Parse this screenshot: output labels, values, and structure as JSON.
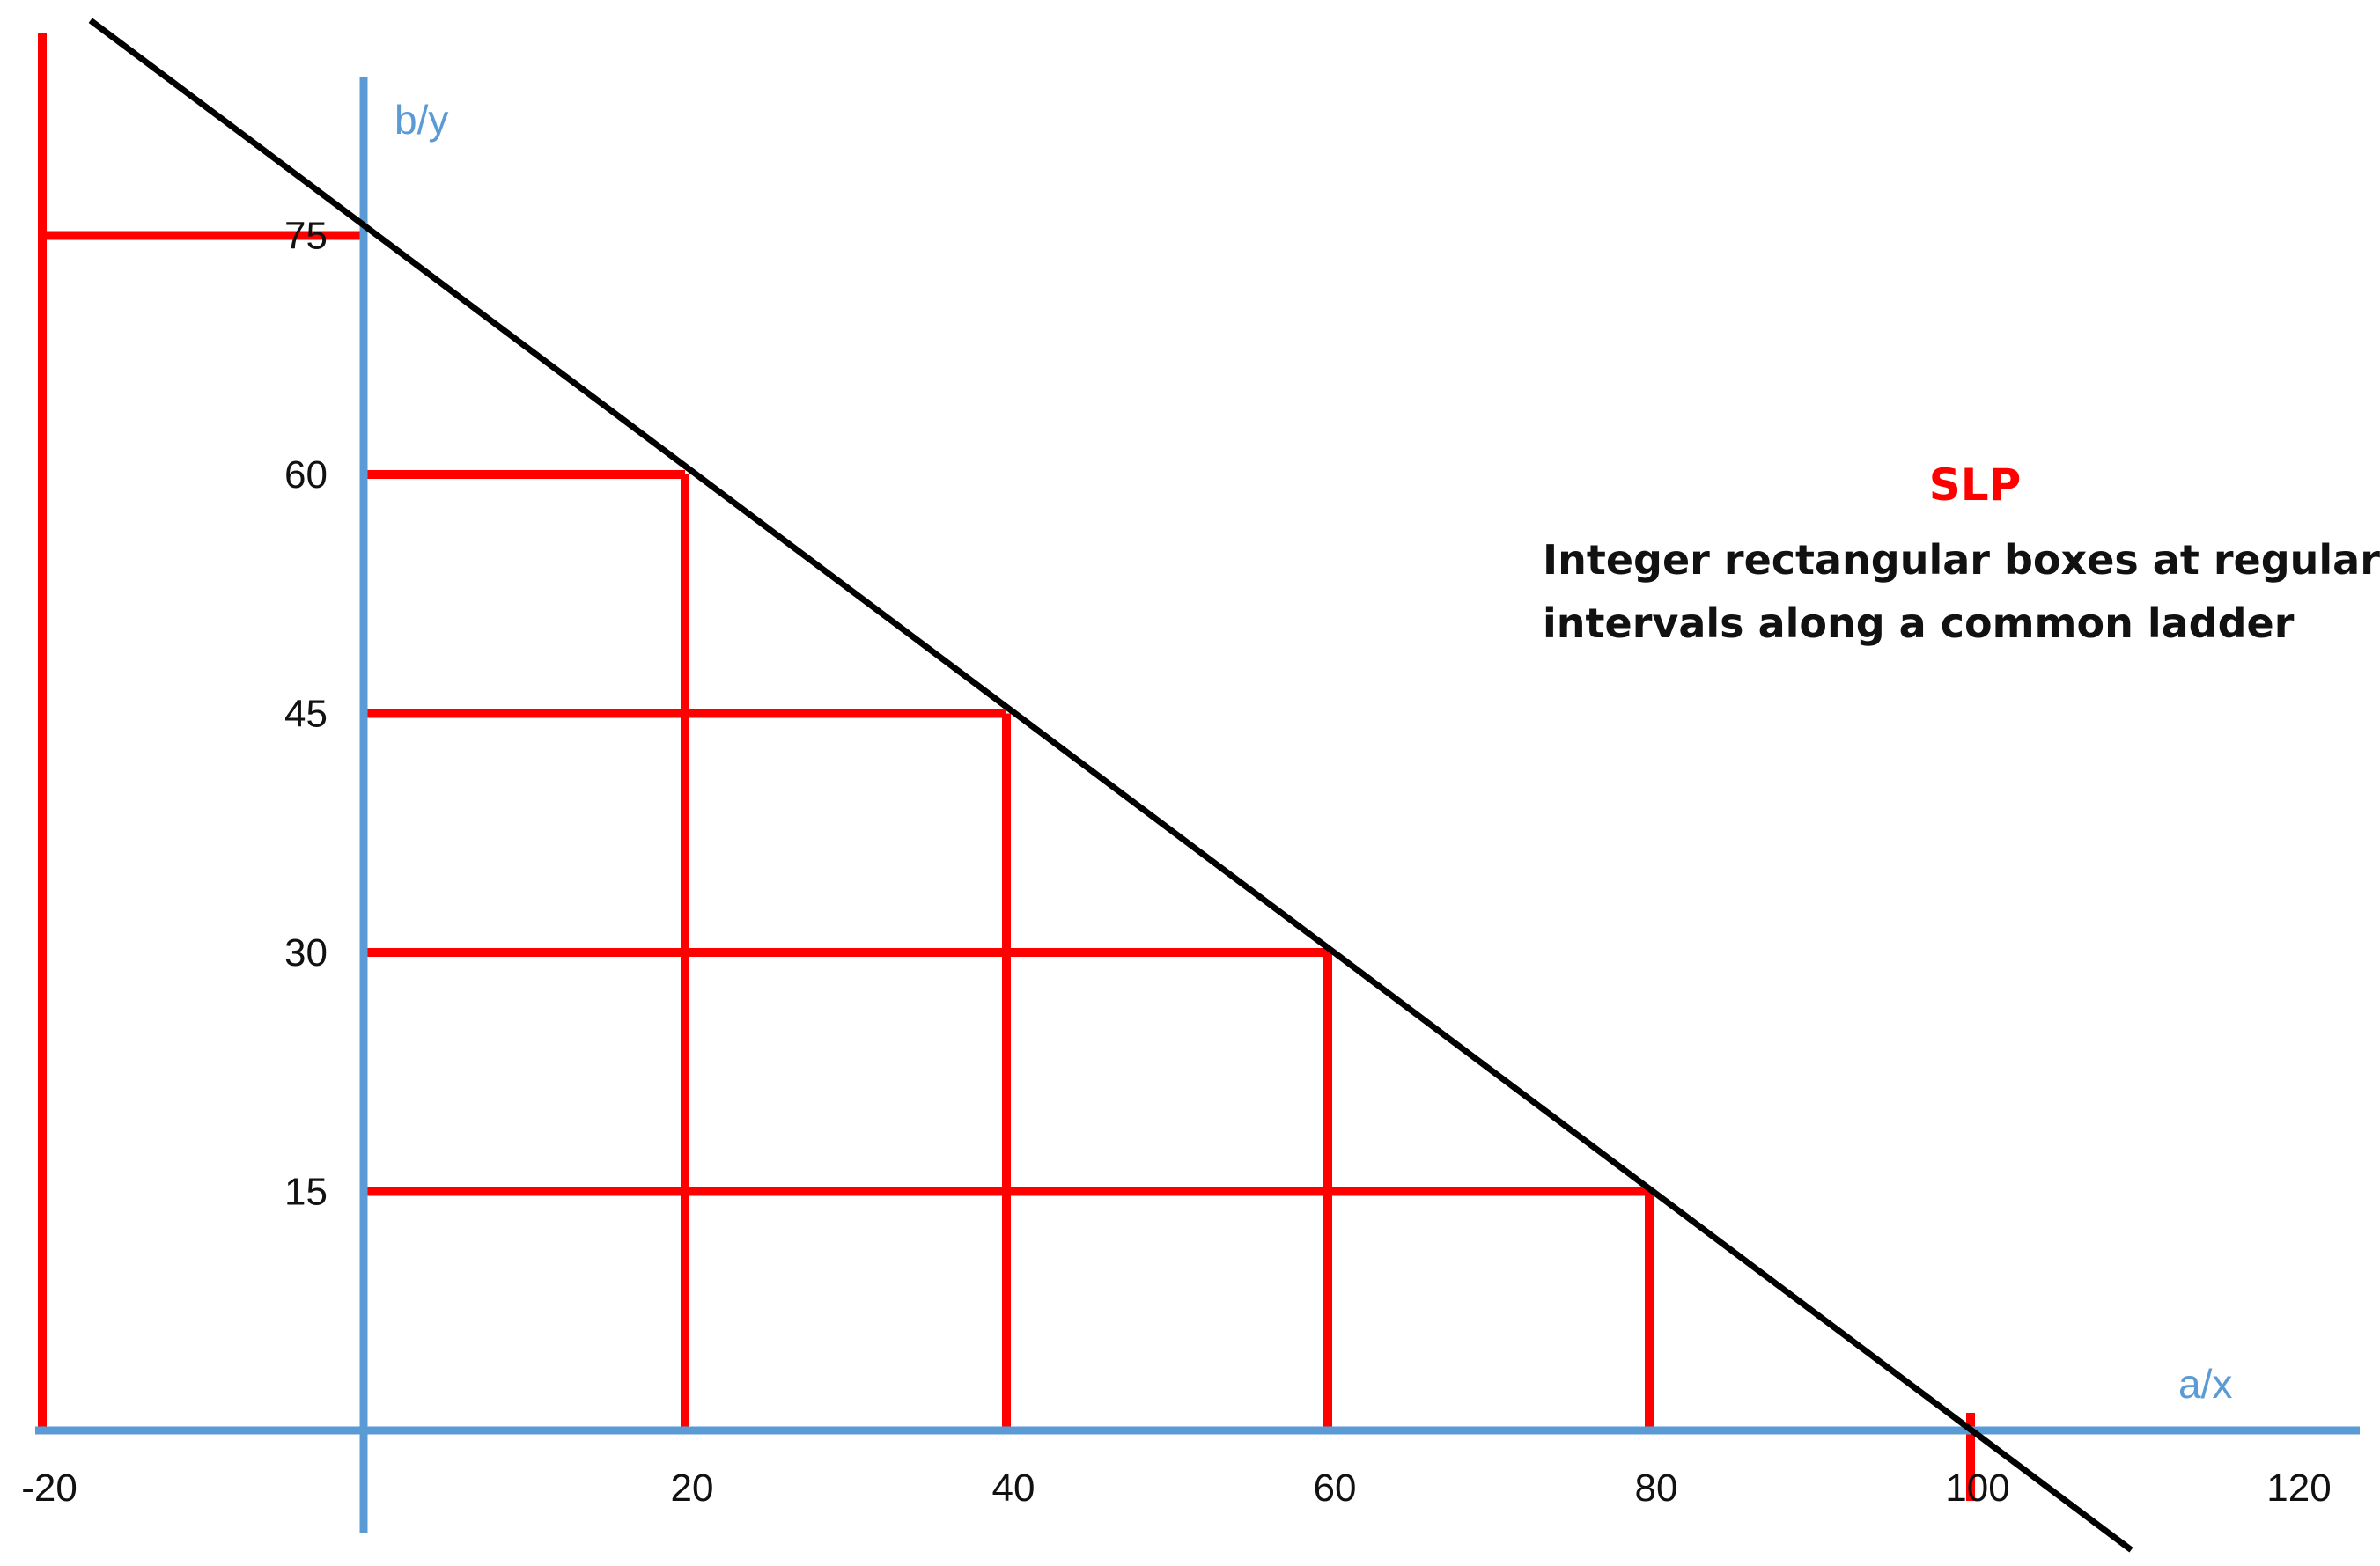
{
  "axes": {
    "y_label": "b/y",
    "x_label": "a/x",
    "x_ticks": [
      "-20",
      "20",
      "40",
      "60",
      "80",
      "100",
      "120"
    ],
    "y_ticks": [
      "75",
      "60",
      "45",
      "30",
      "15"
    ]
  },
  "annotation": {
    "title": "SLP",
    "lines": [
      "Integer rectangular boxes at regular",
      "intervals along a common ladder"
    ]
  },
  "chart_data": {
    "type": "line",
    "line": {
      "x": [
        -17,
        100,
        110
      ],
      "y": [
        88.5,
        0,
        -7.5
      ]
    },
    "ladder": {
      "x": -20,
      "y": 75
    },
    "boxes": [
      {
        "x": 20,
        "y": 60
      },
      {
        "x": 40,
        "y": 45
      },
      {
        "x": 60,
        "y": 30
      },
      {
        "x": 80,
        "y": 15
      }
    ],
    "colors": {
      "axes": "#5b9bd5",
      "boxes": "#ff0000",
      "line": "#000000",
      "title": "#ff0000"
    }
  }
}
